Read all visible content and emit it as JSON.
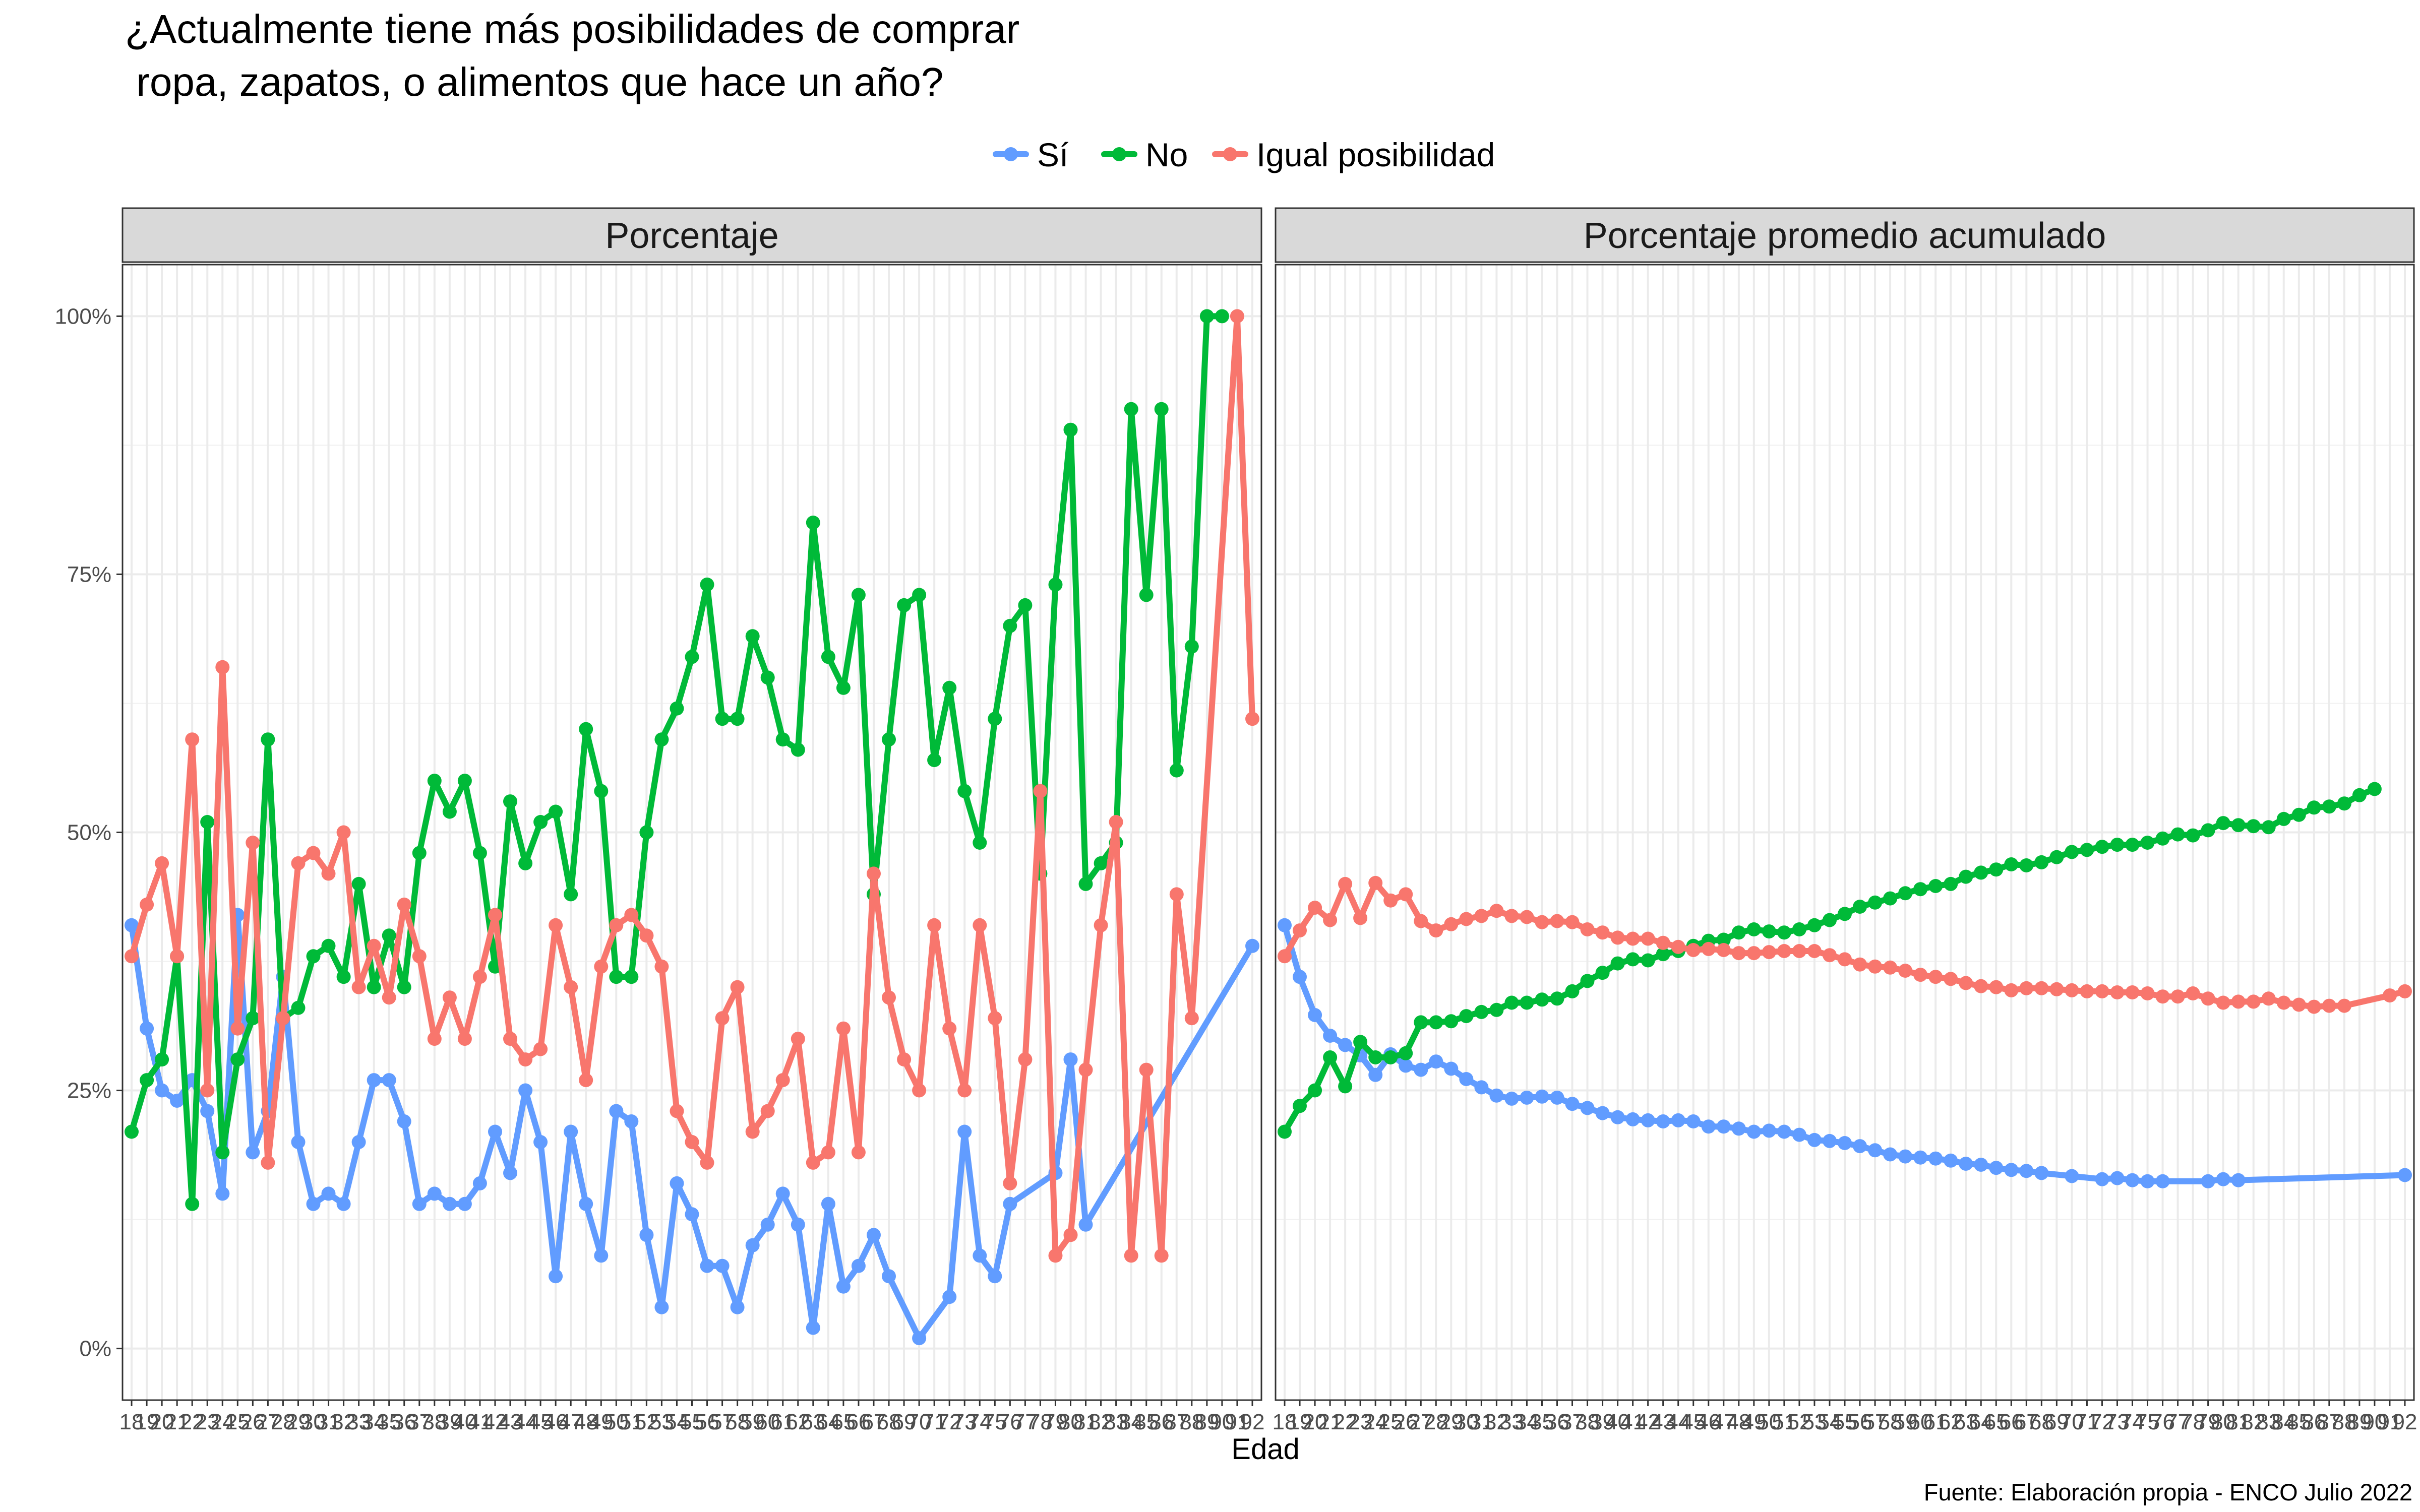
{
  "title_line1": "¿Actualmente tiene más posibilidades de comprar",
  "title_line2": " ropa, zapatos, o alimentos que hace un año?",
  "caption": "Fuente: Elaboración propia - ENCO Julio 2022",
  "colors": {
    "Sí": "#619CFF",
    "No": "#00BA38",
    "Igual posibilidad": "#F8766D"
  },
  "chart_data": [
    {
      "type": "line",
      "title": "Porcentaje",
      "xlabel": "Edad",
      "ylabel": "",
      "ylim": [
        -0.05,
        1.05
      ],
      "yticks": [
        0,
        0.25,
        0.5,
        0.75,
        1
      ],
      "yticklabels": [
        "0%",
        "25%",
        "50%",
        "75%",
        "100%"
      ],
      "grid": true,
      "legend": "top",
      "x": [
        18,
        19,
        20,
        21,
        22,
        23,
        24,
        25,
        26,
        27,
        28,
        29,
        30,
        31,
        32,
        33,
        34,
        35,
        36,
        37,
        38,
        39,
        40,
        41,
        42,
        43,
        44,
        45,
        46,
        47,
        48,
        49,
        50,
        51,
        52,
        53,
        54,
        55,
        56,
        57,
        58,
        59,
        60,
        61,
        62,
        63,
        64,
        65,
        66,
        67,
        68,
        69,
        70,
        71,
        72,
        73,
        74,
        75,
        76,
        77,
        78,
        79,
        80,
        81,
        82,
        83,
        84,
        85,
        86,
        87,
        88,
        89,
        90,
        91,
        92
      ],
      "series": [
        {
          "name": "Sí",
          "values": [
            0.41,
            0.31,
            0.25,
            0.24,
            0.26,
            0.23,
            0.15,
            0.42,
            0.19,
            0.23,
            0.36,
            0.2,
            0.14,
            0.15,
            0.14,
            0.2,
            0.26,
            0.26,
            0.22,
            0.14,
            0.15,
            0.14,
            0.14,
            0.16,
            0.21,
            0.17,
            0.25,
            0.2,
            0.07,
            0.21,
            0.14,
            0.09,
            0.23,
            0.22,
            0.11,
            0.04,
            0.16,
            0.13,
            0.08,
            0.08,
            0.04,
            0.1,
            0.12,
            0.15,
            0.12,
            0.02,
            0.14,
            0.06,
            0.08,
            0.11,
            0.07,
            null,
            0.01,
            null,
            0.05,
            0.21,
            0.09,
            0.07,
            0.14,
            null,
            null,
            0.17,
            0.28,
            0.12,
            null,
            null,
            null,
            null,
            null,
            null,
            null,
            null,
            null,
            null,
            0.39
          ]
        },
        {
          "name": "No",
          "values": [
            0.21,
            0.26,
            0.28,
            0.38,
            0.14,
            0.51,
            0.19,
            0.28,
            0.32,
            0.59,
            0.32,
            0.33,
            0.38,
            0.39,
            0.36,
            0.45,
            0.35,
            0.4,
            0.35,
            0.48,
            0.55,
            0.52,
            0.55,
            0.48,
            0.37,
            0.53,
            0.47,
            0.51,
            0.52,
            0.44,
            0.6,
            0.54,
            0.36,
            0.36,
            0.5,
            0.59,
            0.62,
            0.67,
            0.74,
            0.61,
            0.61,
            0.69,
            0.65,
            0.59,
            0.58,
            0.8,
            0.67,
            0.64,
            0.73,
            0.44,
            0.59,
            0.72,
            0.73,
            0.57,
            0.64,
            0.54,
            0.49,
            0.61,
            0.7,
            0.72,
            0.46,
            0.74,
            0.89,
            0.45,
            0.47,
            0.49,
            0.91,
            0.73,
            0.91,
            0.56,
            0.68,
            1.0,
            1.0,
            null,
            null
          ]
        },
        {
          "name": "Igual posibilidad",
          "values": [
            0.38,
            0.43,
            0.47,
            0.38,
            0.59,
            0.25,
            0.66,
            0.31,
            0.49,
            0.18,
            0.32,
            0.47,
            0.48,
            0.46,
            0.5,
            0.35,
            0.39,
            0.34,
            0.43,
            0.38,
            0.3,
            0.34,
            0.3,
            0.36,
            0.42,
            0.3,
            0.28,
            0.29,
            0.41,
            0.35,
            0.26,
            0.37,
            0.41,
            0.42,
            0.4,
            0.37,
            0.23,
            0.2,
            0.18,
            0.32,
            0.35,
            0.21,
            0.23,
            0.26,
            0.3,
            0.18,
            0.19,
            0.31,
            0.19,
            0.46,
            0.34,
            0.28,
            0.25,
            0.41,
            0.31,
            0.25,
            0.41,
            0.32,
            0.16,
            0.28,
            0.54,
            0.09,
            0.11,
            0.27,
            0.41,
            0.51,
            0.09,
            0.27,
            0.09,
            0.44,
            0.32,
            null,
            null,
            1.0,
            0.61
          ]
        }
      ]
    },
    {
      "type": "line",
      "title": "Porcentaje promedio acumulado",
      "xlabel": "Edad",
      "ylabel": "",
      "ylim": [
        -0.05,
        1.05
      ],
      "grid": true,
      "legend": "top",
      "x": [
        18,
        19,
        20,
        21,
        22,
        23,
        24,
        25,
        26,
        27,
        28,
        29,
        30,
        31,
        32,
        33,
        34,
        35,
        36,
        37,
        38,
        39,
        40,
        41,
        42,
        43,
        44,
        45,
        46,
        47,
        48,
        49,
        50,
        51,
        52,
        53,
        54,
        55,
        56,
        57,
        58,
        59,
        60,
        61,
        62,
        63,
        64,
        65,
        66,
        67,
        68,
        69,
        70,
        71,
        72,
        73,
        74,
        75,
        76,
        77,
        78,
        79,
        80,
        81,
        82,
        83,
        84,
        85,
        86,
        87,
        88,
        89,
        90,
        91,
        92
      ],
      "series": [
        {
          "name": "Sí",
          "values": [
            0.41,
            0.36,
            0.323,
            0.303,
            0.294,
            0.284,
            0.265,
            0.285,
            0.274,
            0.27,
            0.278,
            0.271,
            0.261,
            0.253,
            0.245,
            0.242,
            0.243,
            0.244,
            0.243,
            0.237,
            0.233,
            0.228,
            0.224,
            0.222,
            0.221,
            0.22,
            0.221,
            0.22,
            0.215,
            0.215,
            0.213,
            0.21,
            0.211,
            0.21,
            0.207,
            0.202,
            0.201,
            0.199,
            0.196,
            0.192,
            0.188,
            0.186,
            0.185,
            0.184,
            0.182,
            0.179,
            0.178,
            0.175,
            0.173,
            0.172,
            0.17,
            null,
            0.167,
            null,
            0.164,
            0.165,
            0.163,
            0.162,
            0.162,
            null,
            null,
            0.162,
            0.164,
            0.163,
            null,
            null,
            null,
            null,
            null,
            null,
            null,
            null,
            null,
            null,
            0.168
          ]
        },
        {
          "name": "No",
          "values": [
            0.21,
            0.235,
            0.25,
            0.282,
            0.254,
            0.297,
            0.282,
            0.282,
            0.286,
            0.316,
            0.316,
            0.317,
            0.322,
            0.326,
            0.328,
            0.335,
            0.335,
            0.338,
            0.339,
            0.346,
            0.356,
            0.364,
            0.373,
            0.377,
            0.376,
            0.382,
            0.385,
            0.39,
            0.395,
            0.396,
            0.403,
            0.406,
            0.404,
            0.403,
            0.406,
            0.41,
            0.415,
            0.421,
            0.428,
            0.432,
            0.436,
            0.441,
            0.445,
            0.448,
            0.45,
            0.457,
            0.461,
            0.464,
            0.469,
            0.468,
            0.471,
            0.476,
            0.481,
            0.483,
            0.486,
            0.488,
            0.488,
            0.49,
            0.494,
            0.498,
            0.497,
            0.502,
            0.509,
            0.507,
            0.506,
            0.505,
            0.513,
            0.517,
            0.524,
            0.525,
            0.528,
            0.536,
            0.542,
            null,
            null
          ]
        },
        {
          "name": "Igual posibilidad",
          "values": [
            0.38,
            0.405,
            0.427,
            0.415,
            0.45,
            0.417,
            0.451,
            0.434,
            0.44,
            0.414,
            0.405,
            0.411,
            0.416,
            0.419,
            0.424,
            0.419,
            0.418,
            0.413,
            0.414,
            0.413,
            0.406,
            0.403,
            0.398,
            0.397,
            0.397,
            0.393,
            0.389,
            0.386,
            0.387,
            0.386,
            0.383,
            0.383,
            0.384,
            0.385,
            0.385,
            0.385,
            0.381,
            0.377,
            0.372,
            0.37,
            0.369,
            0.366,
            0.362,
            0.36,
            0.358,
            0.354,
            0.351,
            0.35,
            0.347,
            0.349,
            0.349,
            0.348,
            0.347,
            0.346,
            0.346,
            0.345,
            0.345,
            0.344,
            0.341,
            0.341,
            0.344,
            0.339,
            0.335,
            0.336,
            0.336,
            0.339,
            0.335,
            0.333,
            0.331,
            0.332,
            0.332,
            null,
            null,
            0.342,
            0.346
          ]
        }
      ]
    }
  ],
  "legend_order": [
    "Sí",
    "No",
    "Igual posibilidad"
  ]
}
